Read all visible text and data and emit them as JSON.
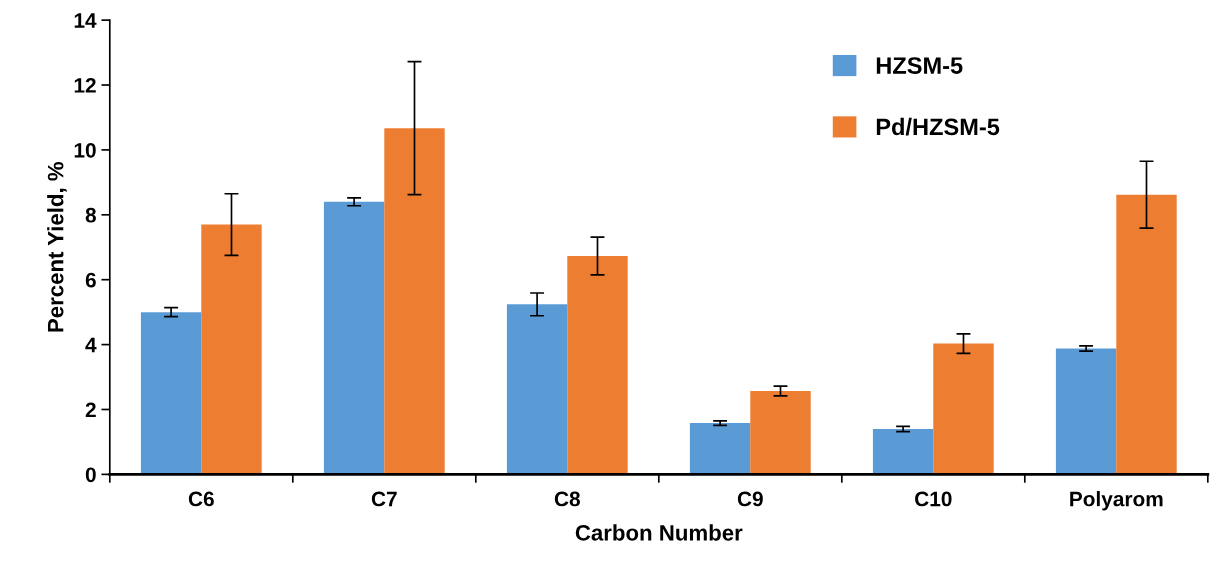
{
  "chart_data": {
    "type": "bar",
    "xlabel": "Carbon Number",
    "ylabel": "Percent Yield, %",
    "categories": [
      "C6",
      "C7",
      "C8",
      "C9",
      "C10",
      "Polyarom"
    ],
    "series": [
      {
        "name": "HZSM-5",
        "color": "#5b9bd5",
        "values": [
          5.0,
          8.4,
          5.24,
          1.58,
          1.4,
          3.88
        ],
        "errors": [
          0.14,
          0.12,
          0.35,
          0.07,
          0.08,
          0.08
        ]
      },
      {
        "name": "Pd/HZSM-5",
        "color": "#ed7d31",
        "values": [
          7.7,
          10.67,
          6.73,
          2.57,
          4.03,
          8.62
        ],
        "errors": [
          0.95,
          2.05,
          0.58,
          0.15,
          0.3,
          1.03
        ]
      }
    ],
    "ylim": [
      0,
      14
    ],
    "yticks": [
      0,
      2,
      4,
      6,
      8,
      10,
      12,
      14
    ],
    "grid": false,
    "legend": "top right"
  }
}
